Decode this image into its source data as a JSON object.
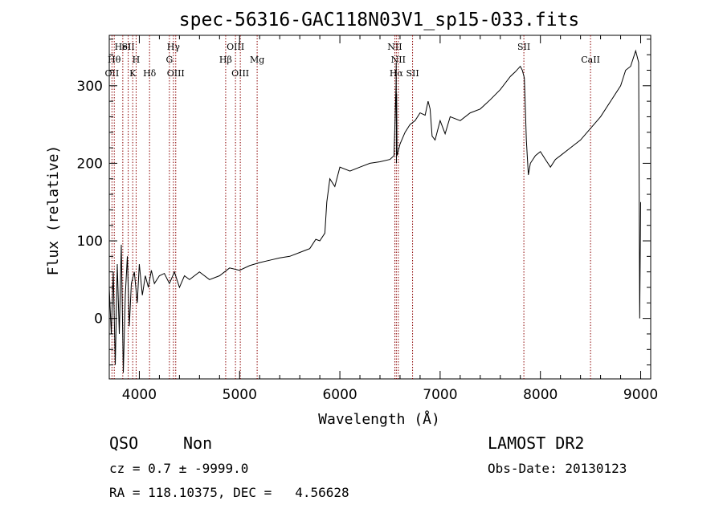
{
  "chart_data": {
    "type": "line",
    "title": "spec-56316-GAC118N03V1_sp15-033.fits",
    "xlabel": "Wavelength (Å)",
    "ylabel": "Flux (relative)",
    "xlim": [
      3700,
      9100
    ],
    "ylim": [
      -78,
      365
    ],
    "xticks": [
      4000,
      5000,
      6000,
      7000,
      8000,
      9000
    ],
    "yticks": [
      0,
      100,
      200,
      300
    ],
    "x": [
      3700,
      3720,
      3740,
      3760,
      3780,
      3800,
      3820,
      3840,
      3860,
      3880,
      3900,
      3920,
      3950,
      3980,
      4000,
      4030,
      4060,
      4090,
      4120,
      4150,
      4200,
      4250,
      4300,
      4350,
      4400,
      4450,
      4500,
      4600,
      4700,
      4800,
      4900,
      5000,
      5100,
      5200,
      5300,
      5400,
      5500,
      5600,
      5700,
      5760,
      5800,
      5850,
      5870,
      5900,
      5950,
      6000,
      6100,
      6200,
      6300,
      6400,
      6500,
      6540,
      6560,
      6562,
      6564,
      6566,
      6570,
      6600,
      6650,
      6700,
      6750,
      6800,
      6850,
      6880,
      6900,
      6920,
      6950,
      7000,
      7050,
      7100,
      7200,
      7300,
      7400,
      7500,
      7600,
      7700,
      7750,
      7800,
      7820,
      7840,
      7850,
      7860,
      7880,
      7900,
      7950,
      8000,
      8050,
      8100,
      8150,
      8200,
      8300,
      8400,
      8500,
      8600,
      8700,
      8800,
      8850,
      8900,
      8950,
      8980,
      8990,
      9000
    ],
    "y": [
      40,
      -20,
      60,
      -60,
      70,
      -20,
      95,
      -70,
      30,
      80,
      -10,
      45,
      60,
      20,
      70,
      30,
      55,
      40,
      62,
      45,
      55,
      58,
      45,
      60,
      40,
      55,
      50,
      60,
      50,
      55,
      65,
      62,
      68,
      72,
      75,
      78,
      80,
      85,
      90,
      102,
      100,
      110,
      150,
      180,
      170,
      195,
      190,
      195,
      200,
      202,
      205,
      210,
      300,
      330,
      200,
      290,
      210,
      225,
      240,
      250,
      255,
      265,
      262,
      280,
      270,
      235,
      230,
      255,
      238,
      260,
      255,
      265,
      270,
      282,
      295,
      312,
      318,
      325,
      320,
      310,
      270,
      230,
      185,
      200,
      210,
      215,
      205,
      195,
      205,
      210,
      220,
      230,
      245,
      260,
      280,
      300,
      320,
      325,
      345,
      330,
      0,
      150
    ],
    "line_markers": [
      {
        "wl": 3727,
        "labels": [
          "OII"
        ],
        "rows": [
          2
        ]
      },
      {
        "wl": 3750,
        "labels": [
          "Hθ"
        ],
        "rows": [
          0
        ]
      },
      {
        "wl": 3835,
        "labels": [
          "HeI"
        ],
        "rows": [
          -1
        ]
      },
      {
        "wl": 3889,
        "labels": [
          "SII"
        ],
        "rows": [
          -1
        ]
      },
      {
        "wl": 3934,
        "labels": [
          "K"
        ],
        "rows": [
          2
        ]
      },
      {
        "wl": 3968,
        "labels": [
          "H"
        ],
        "rows": [
          0
        ]
      },
      {
        "wl": 4102,
        "labels": [
          "Hδ"
        ],
        "rows": [
          2
        ]
      },
      {
        "wl": 4300,
        "labels": [
          "G"
        ],
        "rows": [
          0
        ]
      },
      {
        "wl": 4340,
        "labels": [
          "Hγ"
        ],
        "rows": [
          -1
        ]
      },
      {
        "wl": 4363,
        "labels": [
          "OIII"
        ],
        "rows": [
          2
        ]
      },
      {
        "wl": 4861,
        "labels": [
          "Hβ"
        ],
        "rows": [
          0
        ]
      },
      {
        "wl": 4959,
        "labels": [
          "OIII"
        ],
        "rows": [
          -1
        ]
      },
      {
        "wl": 5007,
        "labels": [
          "OIII"
        ],
        "rows": [
          1
        ]
      },
      {
        "wl": 5175,
        "labels": [
          "Mg"
        ],
        "rows": [
          0
        ]
      },
      {
        "wl": 6548,
        "labels": [
          "NII"
        ],
        "rows": [
          -1
        ]
      },
      {
        "wl": 6563,
        "labels": [
          "Hα"
        ],
        "rows": [
          2
        ]
      },
      {
        "wl": 6583,
        "labels": [
          "NII"
        ],
        "rows": [
          0
        ]
      },
      {
        "wl": 6725,
        "labels": [
          "SII"
        ],
        "rows": [
          2
        ]
      },
      {
        "wl": 7835,
        "labels": [
          "SII"
        ],
        "rows": [
          -1
        ]
      },
      {
        "wl": 8500,
        "labels": [
          "CaII"
        ],
        "rows": [
          0
        ]
      }
    ]
  },
  "info": {
    "class": "QSO",
    "subclass": "Non",
    "survey": "LAMOST DR2",
    "cz": "cz = 0.7 ± -9999.0",
    "obs_date": "Obs-Date: 20130123",
    "radec": "RA = 118.10375, DEC =   4.56628"
  },
  "colors": {
    "spectrum": "#000000",
    "marker": "#8b0000"
  }
}
